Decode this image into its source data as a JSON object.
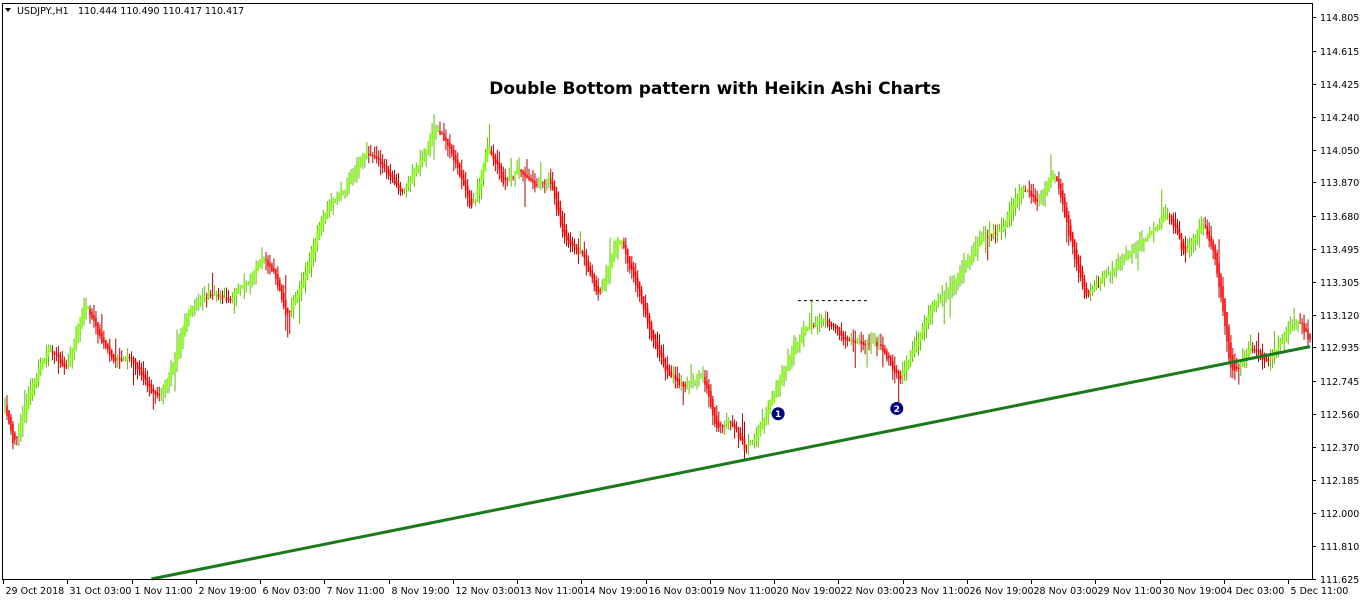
{
  "header": {
    "symbol": "USDJPY.,H1",
    "ohlc": "110.444 110.490 110.417 110.417"
  },
  "colors": {
    "bull": "#7cfc00",
    "bear": "#ff0000",
    "wick_bear": "#b40000",
    "wick_bull": "#5fbf00",
    "trendline": "#1a7a1a",
    "marker": "#00007f",
    "axis": "#000000",
    "background": "#ffffff"
  },
  "chart_data": {
    "type": "candlestick",
    "title": "Double Bottom pattern with Heikin Ashi Charts",
    "y_ticks": [
      "114.805",
      "114.615",
      "114.425",
      "114.240",
      "114.050",
      "113.870",
      "113.680",
      "113.495",
      "113.305",
      "113.120",
      "112.935",
      "112.745",
      "112.560",
      "112.370",
      "112.185",
      "112.000",
      "111.810",
      "111.625"
    ],
    "ylim": [
      111.625,
      114.805
    ],
    "x_ticks": [
      "29 Oct 2018",
      "31 Oct 03:00",
      "1 Nov 11:00",
      "2 Nov 19:00",
      "6 Nov 03:00",
      "7 Nov 11:00",
      "8 Nov 19:00",
      "12 Nov 03:00",
      "13 Nov 11:00",
      "14 Nov 19:00",
      "16 Nov 03:00",
      "19 Nov 11:00",
      "20 Nov 19:00",
      "22 Nov 03:00",
      "23 Nov 11:00",
      "26 Nov 19:00",
      "28 Nov 03:00",
      "29 Nov 11:00",
      "30 Nov 19:00",
      "4 Dec 03:00",
      "5 Dec 11:00"
    ],
    "price_path": [
      [
        0,
        112.6
      ],
      [
        4,
        112.35
      ],
      [
        12,
        112.7
      ],
      [
        22,
        112.95
      ],
      [
        30,
        112.8
      ],
      [
        40,
        113.2
      ],
      [
        47,
        113.0
      ],
      [
        55,
        112.85
      ],
      [
        63,
        112.9
      ],
      [
        72,
        112.7
      ],
      [
        78,
        112.65
      ],
      [
        85,
        112.85
      ],
      [
        92,
        113.15
      ],
      [
        104,
        113.25
      ],
      [
        112,
        113.2
      ],
      [
        122,
        113.3
      ],
      [
        130,
        113.45
      ],
      [
        136,
        113.35
      ],
      [
        142,
        113.1
      ],
      [
        150,
        113.3
      ],
      [
        160,
        113.7
      ],
      [
        172,
        113.85
      ],
      [
        182,
        114.05
      ],
      [
        192,
        113.95
      ],
      [
        200,
        113.8
      ],
      [
        210,
        114.0
      ],
      [
        218,
        114.2
      ],
      [
        228,
        113.95
      ],
      [
        236,
        113.7
      ],
      [
        244,
        114.1
      ],
      [
        252,
        113.85
      ],
      [
        260,
        113.95
      ],
      [
        268,
        113.85
      ],
      [
        275,
        113.9
      ],
      [
        282,
        113.55
      ],
      [
        292,
        113.45
      ],
      [
        300,
        113.2
      ],
      [
        310,
        113.6
      ],
      [
        318,
        113.3
      ],
      [
        326,
        113.0
      ],
      [
        334,
        112.8
      ],
      [
        344,
        112.7
      ],
      [
        352,
        112.8
      ],
      [
        360,
        112.45
      ],
      [
        366,
        112.55
      ],
      [
        374,
        112.35
      ],
      [
        382,
        112.5
      ],
      [
        392,
        112.8
      ],
      [
        404,
        113.05
      ],
      [
        414,
        113.1
      ],
      [
        424,
        112.98
      ],
      [
        434,
        112.95
      ],
      [
        442,
        112.95
      ],
      [
        452,
        112.75
      ],
      [
        460,
        112.97
      ],
      [
        470,
        113.2
      ],
      [
        480,
        113.3
      ],
      [
        492,
        113.55
      ],
      [
        504,
        113.62
      ],
      [
        514,
        113.85
      ],
      [
        522,
        113.75
      ],
      [
        530,
        113.95
      ],
      [
        538,
        113.55
      ],
      [
        546,
        113.2
      ],
      [
        556,
        113.35
      ],
      [
        566,
        113.45
      ],
      [
        576,
        113.55
      ],
      [
        588,
        113.7
      ],
      [
        596,
        113.45
      ],
      [
        606,
        113.65
      ],
      [
        612,
        113.4
      ],
      [
        620,
        112.75
      ],
      [
        630,
        112.95
      ],
      [
        638,
        112.85
      ],
      [
        646,
        113.0
      ],
      [
        654,
        113.1
      ],
      [
        660,
        112.95
      ]
    ],
    "dotted_level": 113.2,
    "trendline": {
      "from": [
        74,
        111.625
      ],
      "to": [
        660,
        112.94
      ]
    },
    "markers": [
      {
        "label": "1",
        "bar": 391,
        "price": 112.56
      },
      {
        "label": "2",
        "bar": 451,
        "price": 112.59
      }
    ],
    "bar_count": 661
  }
}
